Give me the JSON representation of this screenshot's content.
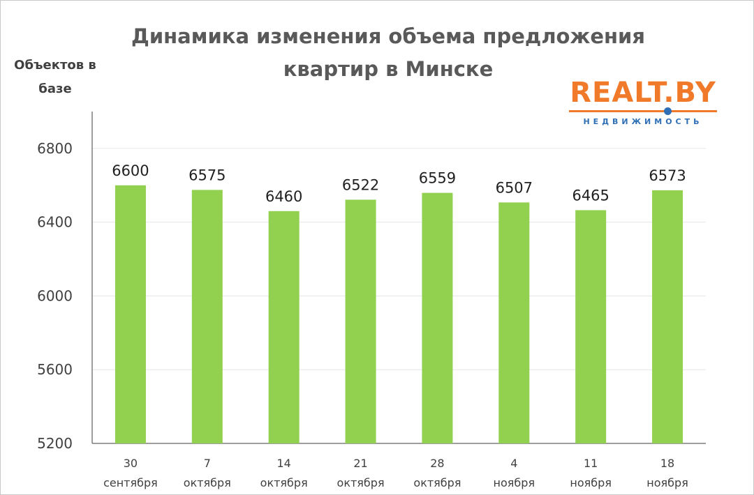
{
  "chart_data": {
    "type": "bar",
    "title_lines": [
      "Динамика изменения объема предложения",
      "квартир в Минске"
    ],
    "ylabel_lines": [
      "Объектов в",
      "базе"
    ],
    "xlabel": "",
    "categories": [
      [
        "30",
        "сентября"
      ],
      [
        "7",
        "октября"
      ],
      [
        "14",
        "октября"
      ],
      [
        "21",
        "октября"
      ],
      [
        "28",
        "октября"
      ],
      [
        "4",
        "ноября"
      ],
      [
        "11",
        "ноября"
      ],
      [
        "18",
        "ноября"
      ]
    ],
    "values": [
      6600,
      6575,
      6460,
      6522,
      6559,
      6507,
      6465,
      6573
    ],
    "ylim": [
      5200,
      7000
    ],
    "yticks": [
      5200,
      5600,
      6000,
      6400,
      6800
    ],
    "grid": true,
    "legend": "none",
    "colors": {
      "bar": "#92d050",
      "grid": "#e6e6e6",
      "axis": "#7f7f7f",
      "title": "#595959"
    }
  },
  "logo": {
    "name": "REALT.BY",
    "tagline": "НЕДВИЖИМОСТЬ",
    "colors": {
      "main": "#f07a2a",
      "accent": "#2f6fb6"
    }
  }
}
